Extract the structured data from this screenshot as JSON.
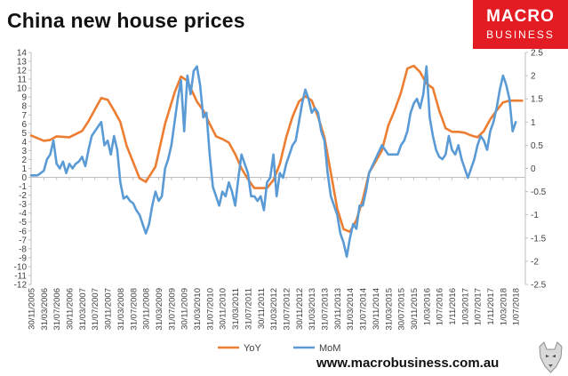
{
  "title": "China new house prices",
  "logo": {
    "line1": "MACRO",
    "line2": "BUSINESS"
  },
  "footer": "www.macrobusiness.com.au",
  "colors": {
    "yoy": "#ed7d31",
    "mom": "#5b9bd5",
    "brand": "#e31b23",
    "axis": "#bfbfbf"
  },
  "chart_data": {
    "type": "line",
    "title": "China new house prices",
    "y_left": {
      "min": -12,
      "max": 14,
      "step": 1
    },
    "y_right": {
      "min": -2.5,
      "max": 2.5,
      "step": 0.5
    },
    "grid": false,
    "legend": "bottom",
    "x_tick_labels": [
      "30/11/2005",
      "31/03/2006",
      "31/07/2006",
      "30/11/2006",
      "31/03/2007",
      "31/07/2007",
      "30/11/2007",
      "31/03/2008",
      "31/07/2008",
      "30/11/2008",
      "31/03/2009",
      "31/07/2009",
      "30/11/2009",
      "31/03/2010",
      "31/07/2010",
      "30/11/2010",
      "31/03/2011",
      "31/07/2011",
      "30/11/2011",
      "31/03/2012",
      "31/07/2012",
      "30/11/2012",
      "31/03/2013",
      "31/07/2013",
      "30/11/2013",
      "31/03/2014",
      "31/07/2014",
      "30/11/2014",
      "31/03/2015",
      "30/07/2015",
      "30/11/2015",
      "1/03/2016",
      "1/07/2016",
      "1/11/2016",
      "1/03/2017",
      "1/07/2017",
      "1/11/2017",
      "1/03/2018",
      "1/07/2018"
    ],
    "series": [
      {
        "name": "YoY",
        "axis": "left",
        "x": [
          0,
          4,
          6,
          8,
          12,
          16,
          18,
          22,
          24,
          26,
          28,
          30,
          34,
          36,
          39,
          42,
          45,
          47,
          49,
          52,
          54,
          56,
          58,
          60,
          62,
          64,
          66,
          68,
          70,
          74,
          76,
          78,
          80,
          82,
          84,
          86,
          88,
          90,
          92,
          94,
          96,
          98,
          100,
          102,
          104,
          106,
          110,
          112,
          114,
          116,
          118,
          120,
          122,
          124,
          126,
          128,
          130,
          132,
          134,
          136,
          138,
          140,
          142,
          144,
          146,
          148,
          150,
          152,
          154
        ],
        "values": [
          4.7,
          4.1,
          4.2,
          4.6,
          4.5,
          5.2,
          6.3,
          8.9,
          8.7,
          7.5,
          6.2,
          3.5,
          -0.1,
          -0.5,
          1.2,
          6.0,
          9.5,
          11.3,
          10.8,
          8.5,
          7.5,
          6.0,
          4.6,
          4.3,
          3.9,
          2.6,
          1.0,
          -0.2,
          -1.2,
          -1.2,
          -0.3,
          1.5,
          4.5,
          6.8,
          8.5,
          9.1,
          8.6,
          6.8,
          4.5,
          0.5,
          -3.5,
          -5.8,
          -6.1,
          -4.8,
          -2.5,
          0.5,
          3.0,
          5.8,
          7.5,
          9.5,
          12.2,
          12.5,
          11.8,
          10.5,
          10.0,
          7.5,
          5.5,
          5.1,
          5.1,
          5.0,
          4.7,
          4.5,
          5.2,
          6.5,
          7.5,
          8.4,
          8.6,
          8.6,
          8.6
        ]
      },
      {
        "name": "MoM",
        "axis": "right",
        "x": [
          0,
          2,
          3,
          4,
          5,
          6,
          7,
          8,
          9,
          10,
          11,
          12,
          13,
          14,
          15,
          16,
          17,
          18,
          19,
          20,
          21,
          22,
          23,
          24,
          25,
          26,
          27,
          28,
          29,
          30,
          31,
          32,
          33,
          34,
          35,
          36,
          37,
          38,
          39,
          40,
          41,
          42,
          43,
          44,
          45,
          46,
          47,
          48,
          49,
          50,
          51,
          52,
          53,
          54,
          55,
          56,
          57,
          58,
          59,
          60,
          61,
          62,
          63,
          64,
          65,
          66,
          67,
          68,
          69,
          70,
          71,
          72,
          73,
          74,
          75,
          76,
          77,
          78,
          79,
          80,
          81,
          82,
          83,
          84,
          85,
          86,
          87,
          88,
          89,
          90,
          91,
          92,
          93,
          94,
          95,
          96,
          97,
          98,
          99,
          100,
          101,
          102,
          103,
          104,
          105,
          106,
          108,
          110,
          112,
          113,
          114,
          115,
          116,
          117,
          118,
          119,
          120,
          121,
          122,
          123,
          124,
          125,
          126,
          127,
          128,
          129,
          130,
          131,
          132,
          133,
          134,
          135,
          136,
          137,
          138,
          139,
          140,
          141,
          142,
          143,
          144,
          145,
          146,
          147,
          148,
          149,
          150,
          151,
          152
        ],
        "values": [
          -0.15,
          -0.15,
          -0.1,
          -0.05,
          0.2,
          0.3,
          0.6,
          0.1,
          0.0,
          0.15,
          -0.1,
          0.1,
          0.0,
          0.1,
          0.15,
          0.25,
          0.05,
          0.4,
          0.7,
          0.8,
          0.9,
          1.0,
          0.5,
          0.6,
          0.3,
          0.7,
          0.4,
          -0.3,
          -0.65,
          -0.6,
          -0.7,
          -0.75,
          -0.9,
          -1.0,
          -1.2,
          -1.4,
          -1.2,
          -0.8,
          -0.5,
          -0.7,
          -0.6,
          0.0,
          0.2,
          0.5,
          1.0,
          1.5,
          1.9,
          0.8,
          2.0,
          1.6,
          2.1,
          2.2,
          1.8,
          1.1,
          1.2,
          0.3,
          -0.4,
          -0.6,
          -0.8,
          -0.5,
          -0.6,
          -0.3,
          -0.5,
          -0.8,
          -0.2,
          0.3,
          0.1,
          -0.1,
          -0.6,
          -0.6,
          -0.7,
          -0.6,
          -0.9,
          -0.3,
          -0.2,
          0.3,
          -0.6,
          -0.1,
          -0.2,
          0.1,
          0.3,
          0.5,
          0.6,
          1.0,
          1.4,
          1.7,
          1.5,
          1.2,
          1.3,
          1.2,
          0.8,
          0.6,
          -0.1,
          -0.6,
          -0.8,
          -1.0,
          -1.4,
          -1.6,
          -1.9,
          -1.5,
          -1.2,
          -1.3,
          -0.8,
          -0.8,
          -0.5,
          -0.1,
          0.2,
          0.5,
          0.3,
          0.3,
          0.3,
          0.3,
          0.5,
          0.6,
          0.8,
          1.2,
          1.4,
          1.5,
          1.3,
          1.6,
          2.2,
          1.1,
          0.7,
          0.4,
          0.25,
          0.2,
          0.3,
          0.7,
          0.4,
          0.3,
          0.5,
          0.2,
          0.0,
          -0.2,
          0.0,
          0.2,
          0.5,
          0.7,
          0.6,
          0.4,
          0.8,
          1.0,
          1.3,
          1.7,
          2.0,
          1.8,
          1.5,
          0.8,
          1.0
        ]
      }
    ]
  }
}
